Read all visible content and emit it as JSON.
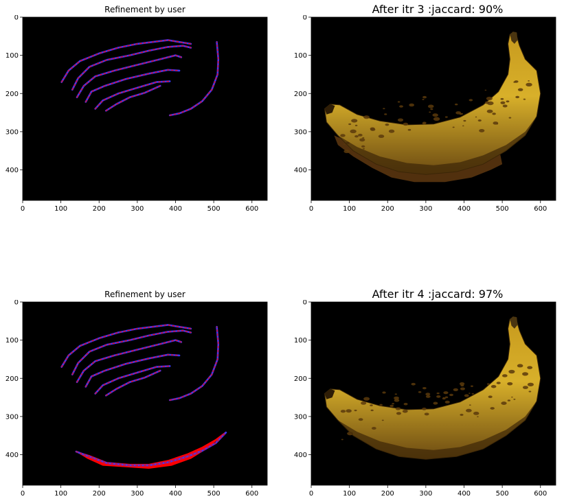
{
  "panels": [
    {
      "title": "Refinement by user",
      "type": "scribble_mask",
      "x_ticks": [
        "0",
        "100",
        "200",
        "300",
        "400",
        "500",
        "600"
      ],
      "y_ticks": [
        "0",
        "100",
        "200",
        "300",
        "400"
      ],
      "background": "#000000",
      "stroke_colors": [
        "#ff0000",
        "#3a3aff"
      ]
    },
    {
      "title": "After itr 3 :jaccard: 90%",
      "type": "segmentation_result",
      "x_ticks": [
        "0",
        "100",
        "200",
        "300",
        "400",
        "500",
        "600"
      ],
      "y_ticks": [
        "0",
        "100",
        "200",
        "300",
        "400"
      ],
      "background": "#000000",
      "jaccard_percent": 90
    },
    {
      "title": "Refinement by user",
      "type": "scribble_mask",
      "x_ticks": [
        "0",
        "100",
        "200",
        "300",
        "400",
        "500",
        "600"
      ],
      "y_ticks": [
        "0",
        "100",
        "200",
        "300",
        "400"
      ],
      "background": "#000000",
      "stroke_colors": [
        "#ff0000",
        "#3a3aff"
      ]
    },
    {
      "title": "After itr 4 :jaccard: 97%",
      "type": "segmentation_result",
      "x_ticks": [
        "0",
        "100",
        "200",
        "300",
        "400",
        "500",
        "600"
      ],
      "y_ticks": [
        "0",
        "100",
        "200",
        "300",
        "400"
      ],
      "background": "#000000",
      "jaccard_percent": 97
    }
  ],
  "chart_data": [
    {
      "type": "other",
      "title": "Refinement by user",
      "xlim": [
        0,
        640
      ],
      "ylim": [
        480,
        0
      ],
      "scribbles": [
        [
          [
            102,
            170
          ],
          [
            120,
            140
          ],
          [
            150,
            115
          ],
          [
            200,
            95
          ],
          [
            250,
            80
          ],
          [
            300,
            70
          ],
          [
            340,
            65
          ],
          [
            380,
            60
          ],
          [
            410,
            65
          ],
          [
            440,
            70
          ]
        ],
        [
          [
            130,
            190
          ],
          [
            145,
            160
          ],
          [
            175,
            130
          ],
          [
            220,
            112
          ],
          [
            280,
            100
          ],
          [
            330,
            88
          ],
          [
            380,
            78
          ],
          [
            420,
            75
          ],
          [
            440,
            80
          ]
        ],
        [
          [
            142,
            210
          ],
          [
            160,
            180
          ],
          [
            190,
            155
          ],
          [
            240,
            140
          ],
          [
            300,
            125
          ],
          [
            360,
            110
          ],
          [
            400,
            100
          ],
          [
            415,
            105
          ]
        ],
        [
          [
            165,
            222
          ],
          [
            180,
            195
          ],
          [
            215,
            180
          ],
          [
            270,
            162
          ],
          [
            330,
            148
          ],
          [
            380,
            138
          ],
          [
            410,
            140
          ]
        ],
        [
          [
            190,
            240
          ],
          [
            210,
            218
          ],
          [
            250,
            200
          ],
          [
            300,
            185
          ],
          [
            350,
            170
          ],
          [
            385,
            168
          ]
        ],
        [
          [
            218,
            245
          ],
          [
            245,
            228
          ],
          [
            280,
            210
          ],
          [
            320,
            198
          ],
          [
            360,
            180
          ]
        ],
        [
          [
            385,
            257
          ],
          [
            410,
            252
          ],
          [
            440,
            240
          ],
          [
            470,
            220
          ],
          [
            495,
            190
          ],
          [
            510,
            150
          ],
          [
            512,
            110
          ],
          [
            508,
            65
          ]
        ]
      ]
    },
    {
      "type": "other",
      "title": "After itr 3 :jaccard: 90%",
      "xlim": [
        0,
        640
      ],
      "ylim": [
        480,
        0
      ],
      "jaccard_percent": 90
    },
    {
      "type": "other",
      "title": "Refinement by user",
      "xlim": [
        0,
        640
      ],
      "ylim": [
        480,
        0
      ],
      "scribbles": [
        [
          [
            102,
            170
          ],
          [
            120,
            140
          ],
          [
            150,
            115
          ],
          [
            200,
            95
          ],
          [
            250,
            80
          ],
          [
            300,
            70
          ],
          [
            340,
            65
          ],
          [
            380,
            60
          ],
          [
            410,
            65
          ],
          [
            440,
            70
          ]
        ],
        [
          [
            130,
            190
          ],
          [
            145,
            160
          ],
          [
            175,
            130
          ],
          [
            220,
            112
          ],
          [
            280,
            100
          ],
          [
            330,
            88
          ],
          [
            380,
            78
          ],
          [
            420,
            75
          ],
          [
            440,
            80
          ]
        ],
        [
          [
            142,
            210
          ],
          [
            160,
            180
          ],
          [
            190,
            155
          ],
          [
            240,
            140
          ],
          [
            300,
            125
          ],
          [
            360,
            110
          ],
          [
            400,
            100
          ],
          [
            415,
            105
          ]
        ],
        [
          [
            165,
            222
          ],
          [
            180,
            195
          ],
          [
            215,
            180
          ],
          [
            270,
            162
          ],
          [
            330,
            148
          ],
          [
            380,
            138
          ],
          [
            410,
            140
          ]
        ],
        [
          [
            190,
            240
          ],
          [
            210,
            218
          ],
          [
            250,
            200
          ],
          [
            300,
            185
          ],
          [
            350,
            170
          ],
          [
            385,
            168
          ]
        ],
        [
          [
            218,
            245
          ],
          [
            245,
            228
          ],
          [
            280,
            210
          ],
          [
            320,
            198
          ],
          [
            360,
            180
          ]
        ],
        [
          [
            385,
            257
          ],
          [
            410,
            252
          ],
          [
            440,
            240
          ],
          [
            470,
            220
          ],
          [
            495,
            190
          ],
          [
            510,
            150
          ],
          [
            512,
            110
          ],
          [
            508,
            65
          ]
        ],
        [
          [
            140,
            392
          ],
          [
            175,
            405
          ],
          [
            220,
            422
          ],
          [
            280,
            428
          ],
          [
            330,
            428
          ],
          [
            380,
            420
          ],
          [
            430,
            405
          ],
          [
            470,
            390
          ],
          [
            505,
            370
          ],
          [
            532,
            342
          ]
        ]
      ],
      "filled_region": [
        [
          140,
          392
        ],
        [
          175,
          402
        ],
        [
          220,
          420
        ],
        [
          280,
          425
        ],
        [
          330,
          425
        ],
        [
          380,
          415
        ],
        [
          430,
          398
        ],
        [
          470,
          380
        ],
        [
          505,
          360
        ],
        [
          532,
          340
        ],
        [
          520,
          352
        ],
        [
          480,
          385
        ],
        [
          440,
          410
        ],
        [
          390,
          428
        ],
        [
          330,
          436
        ],
        [
          270,
          432
        ],
        [
          210,
          428
        ],
        [
          170,
          410
        ]
      ]
    },
    {
      "type": "other",
      "title": "After itr 4 :jaccard: 97%",
      "xlim": [
        0,
        640
      ],
      "ylim": [
        480,
        0
      ],
      "jaccard_percent": 97
    }
  ]
}
